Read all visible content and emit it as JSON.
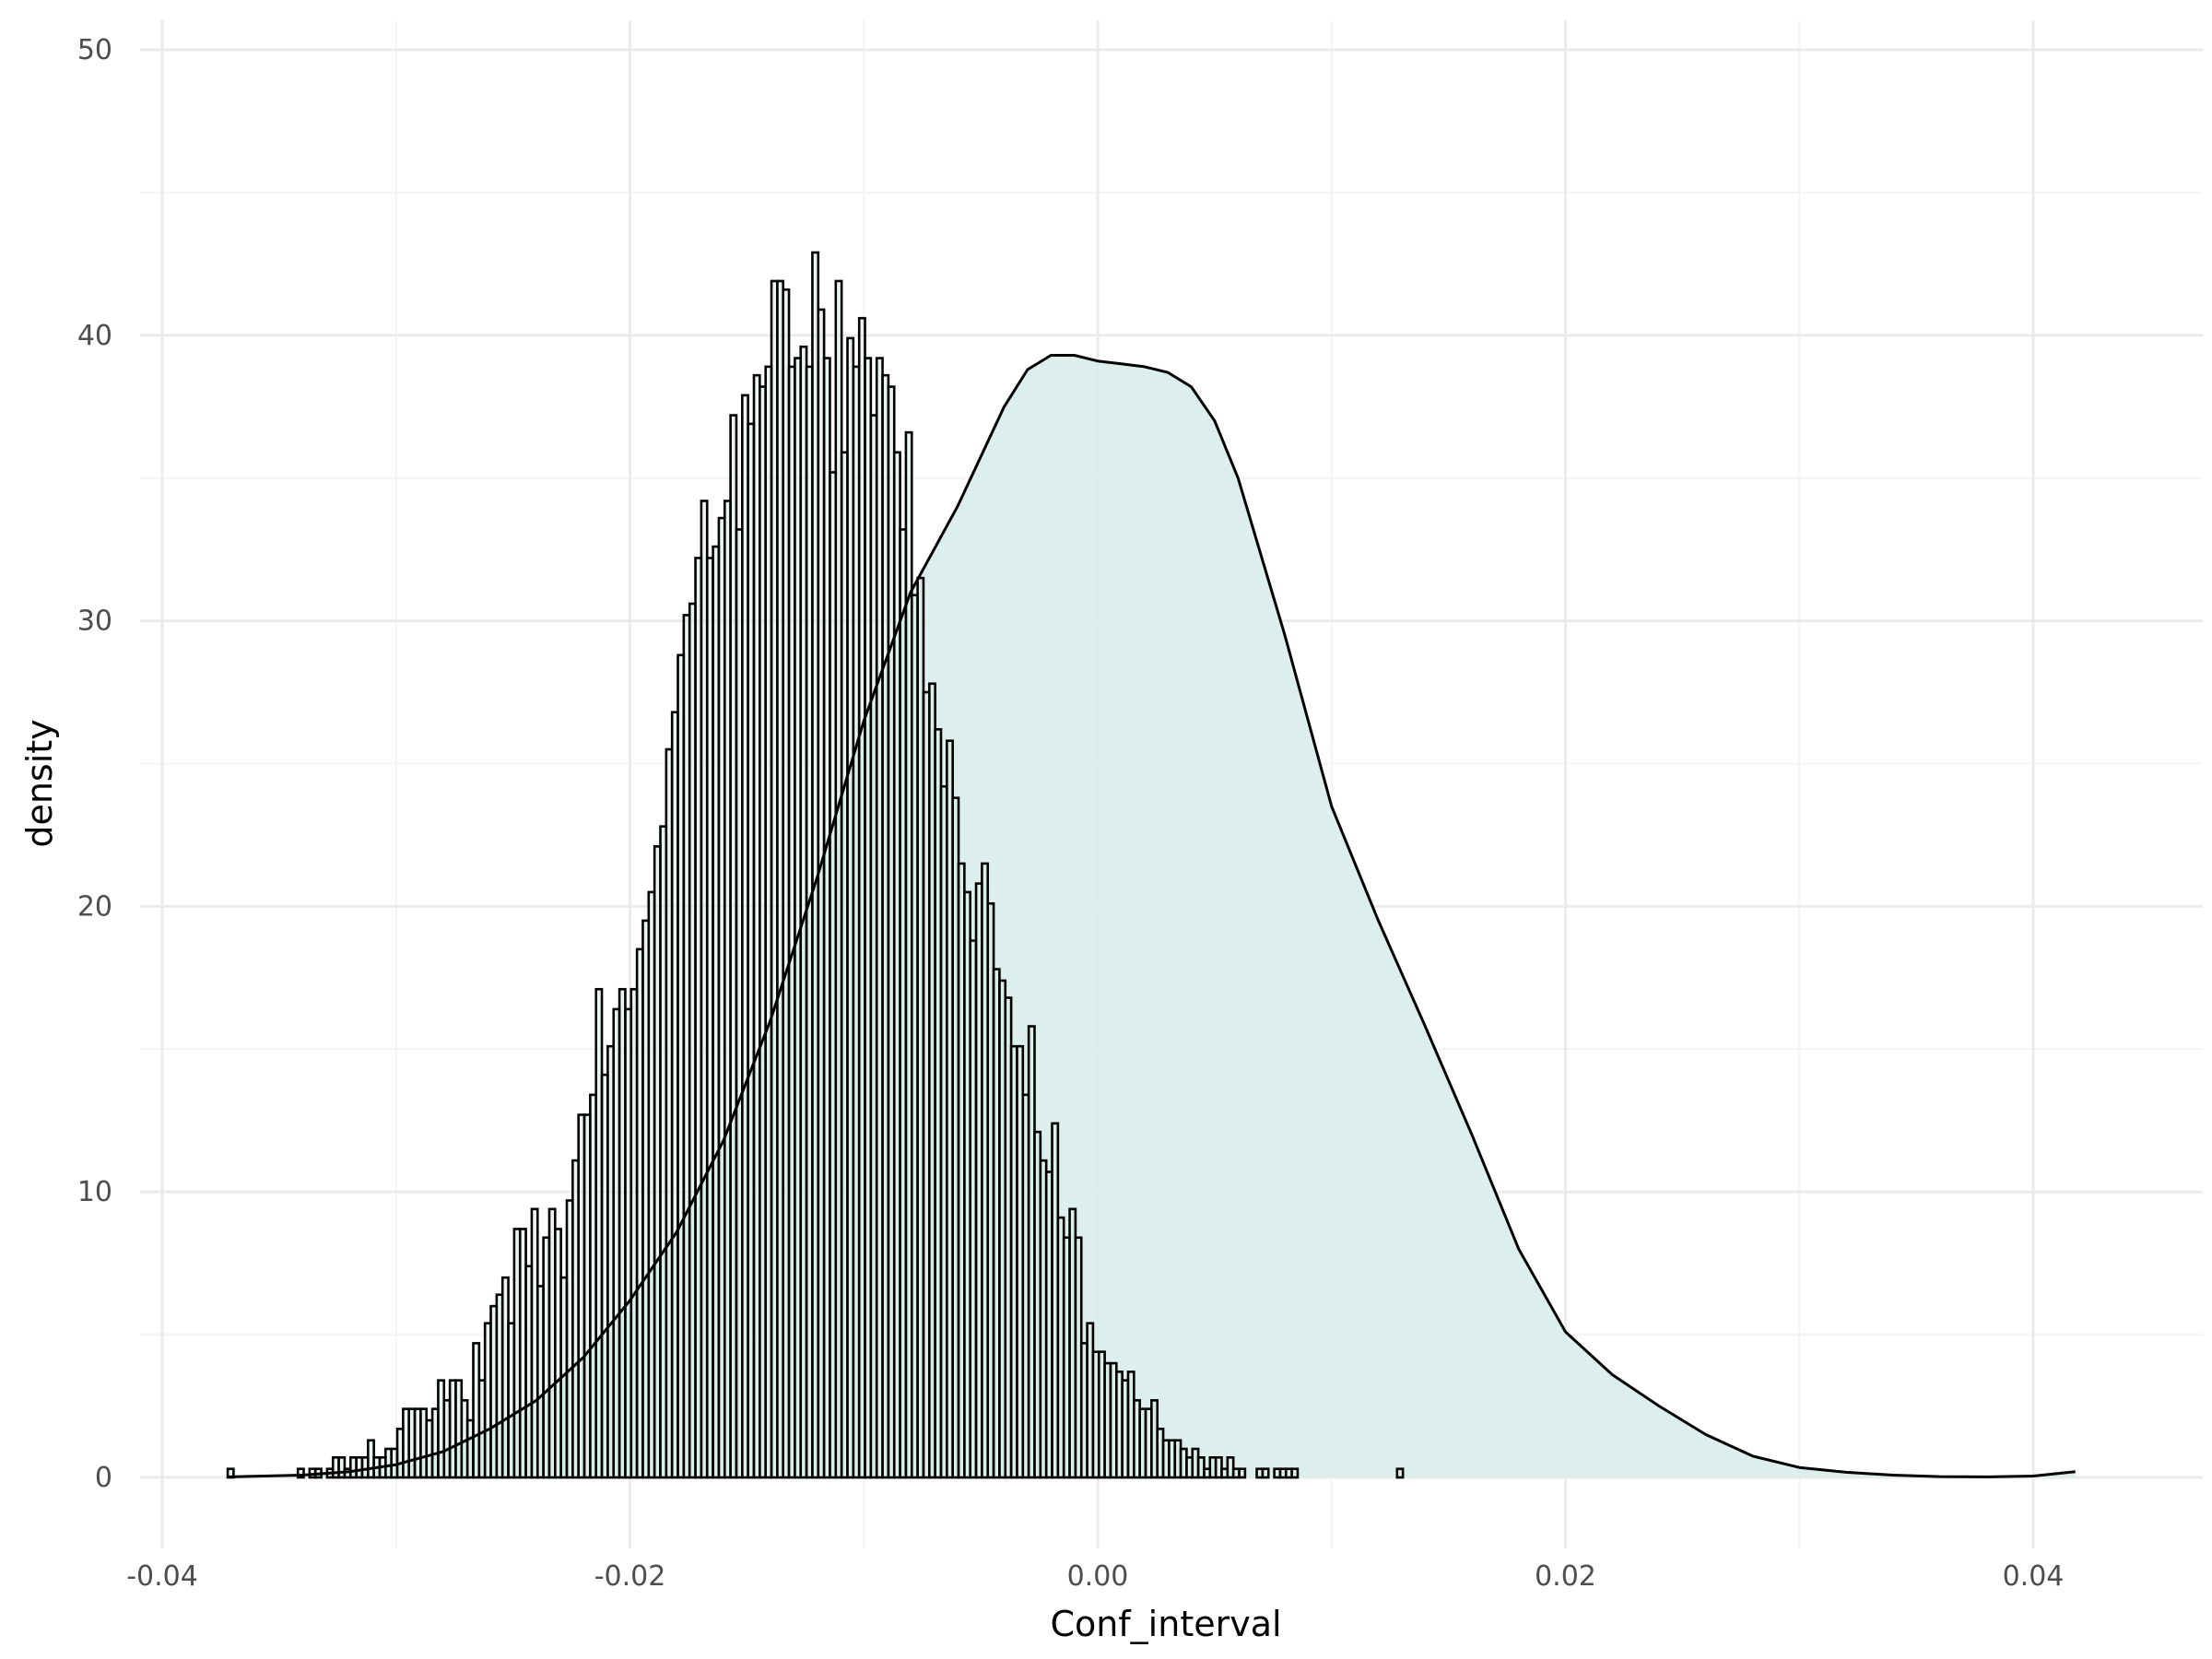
{
  "chart_data": {
    "type": "histogram",
    "title": "",
    "xlabel": "Conf_interval",
    "ylabel": "density",
    "xlim": [
      -0.04,
      0.04
    ],
    "ylim": [
      0,
      50
    ],
    "x_ticks": [
      -0.04,
      -0.02,
      0.0,
      0.02,
      0.04
    ],
    "x_tick_labels": [
      "-0.04",
      "-0.02",
      "0.00",
      "0.02",
      "0.04"
    ],
    "y_ticks": [
      0,
      10,
      20,
      30,
      40,
      50
    ],
    "y_tick_labels": [
      "0",
      "10",
      "20",
      "30",
      "40",
      "50"
    ],
    "grid": true,
    "bins": {
      "start": -0.0372,
      "width": 0.00025,
      "values": [
        0.3,
        0,
        0,
        0,
        0,
        0,
        0,
        0,
        0,
        0,
        0,
        0,
        0.3,
        0,
        0.3,
        0.3,
        0,
        0.3,
        0.7,
        0.7,
        0.3,
        0.7,
        0.7,
        0.7,
        1.3,
        0.7,
        0.7,
        1.0,
        1.0,
        1.7,
        2.4,
        2.4,
        2.4,
        2.4,
        2.0,
        2.4,
        3.4,
        2.7,
        3.4,
        3.4,
        2.7,
        2.0,
        4.7,
        3.4,
        5.4,
        6.0,
        6.4,
        7.0,
        5.4,
        8.7,
        8.7,
        7.4,
        9.4,
        6.7,
        8.4,
        9.4,
        8.7,
        7.0,
        9.7,
        11.1,
        12.7,
        12.7,
        13.4,
        17.1,
        14.1,
        15.1,
        16.4,
        17.1,
        16.4,
        17.1,
        18.5,
        19.5,
        20.5,
        22.1,
        22.8,
        25.5,
        26.8,
        28.8,
        30.2,
        30.6,
        32.2,
        34.2,
        32.2,
        32.6,
        33.6,
        34.2,
        37.2,
        33.2,
        37.9,
        36.9,
        38.6,
        38.2,
        38.9,
        41.9,
        41.9,
        41.6,
        38.9,
        39.2,
        39.6,
        38.9,
        42.9,
        40.9,
        39.2,
        35.2,
        41.9,
        35.9,
        39.9,
        38.9,
        40.6,
        39.2,
        37.2,
        39.2,
        38.6,
        38.2,
        35.9,
        33.2,
        36.6,
        30.9,
        31.5,
        27.5,
        27.8,
        26.2,
        24.2,
        25.8,
        23.8,
        21.5,
        20.5,
        18.8,
        20.8,
        21.5,
        20.1,
        17.8,
        17.4,
        16.8,
        15.1,
        15.1,
        13.4,
        15.8,
        12.1,
        11.1,
        10.7,
        12.4,
        9.1,
        8.4,
        9.4,
        8.4,
        4.7,
        5.4,
        4.4,
        4.4,
        4.0,
        4.0,
        3.7,
        3.4,
        3.7,
        2.7,
        2.4,
        2.4,
        2.7,
        1.7,
        1.3,
        1.3,
        1.3,
        1.0,
        0.7,
        1.0,
        0.7,
        0.3,
        0.7,
        0.7,
        0.3,
        0.7,
        0.3,
        0.3,
        0,
        0,
        0.3,
        0.3,
        0,
        0.3,
        0.3,
        0.3,
        0.3,
        0,
        0,
        0,
        0,
        0,
        0,
        0,
        0,
        0,
        0,
        0,
        0,
        0,
        0,
        0,
        0,
        0,
        0.3
      ]
    },
    "density_curve": {
      "x": [
        -0.0372,
        -0.034,
        -0.032,
        -0.03,
        -0.028,
        -0.026,
        -0.024,
        -0.022,
        -0.02,
        -0.018,
        -0.016,
        -0.014,
        -0.012,
        -0.01,
        -0.008,
        -0.006,
        -0.004,
        -0.003,
        -0.002,
        -0.001,
        0.0,
        0.001,
        0.002,
        0.003,
        0.004,
        0.005,
        0.006,
        0.008,
        0.01,
        0.012,
        0.014,
        0.016,
        0.018,
        0.02,
        0.022,
        0.024,
        0.026,
        0.028,
        0.03,
        0.032,
        0.034,
        0.036,
        0.038,
        0.04,
        0.0418
      ],
      "y": [
        0.02,
        0.08,
        0.2,
        0.45,
        0.9,
        1.7,
        2.7,
        4.2,
        6.2,
        8.6,
        11.8,
        16.0,
        21.0,
        26.5,
        31.0,
        34.0,
        37.5,
        38.8,
        39.3,
        39.3,
        39.1,
        39.0,
        38.9,
        38.7,
        38.2,
        37.0,
        35.0,
        29.5,
        23.5,
        19.5,
        15.8,
        12.0,
        8.0,
        5.1,
        3.6,
        2.5,
        1.5,
        0.75,
        0.35,
        0.18,
        0.08,
        0.03,
        0.02,
        0.05,
        0.2
      ]
    },
    "colors": {
      "bar_fill": "#d8edea",
      "bar_stroke": "#000000",
      "curve_fill": "#d8edea",
      "curve_stroke": "#000000",
      "grid_major": "#ebebeb",
      "grid_minor": "#f4f4f4"
    }
  }
}
